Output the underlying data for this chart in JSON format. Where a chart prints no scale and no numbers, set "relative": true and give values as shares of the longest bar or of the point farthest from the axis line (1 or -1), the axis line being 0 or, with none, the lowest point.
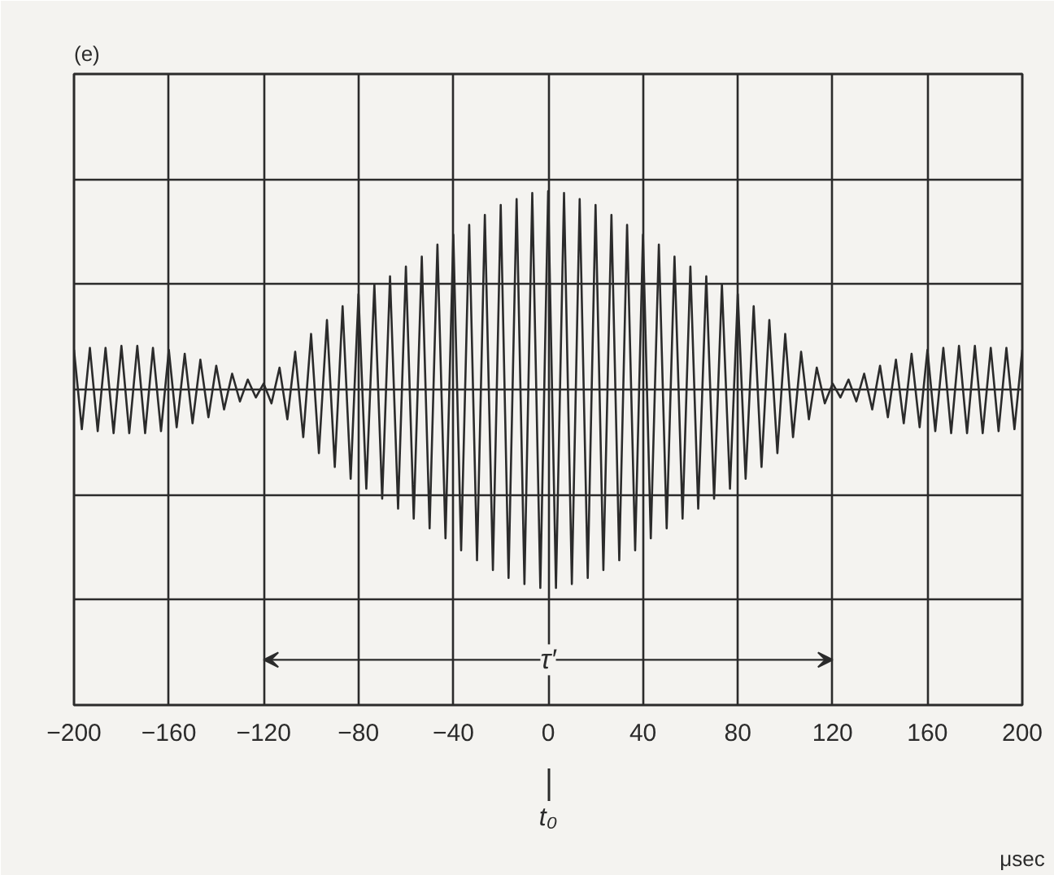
{
  "chart_data": {
    "type": "line",
    "title": "(e)",
    "xlabel": "μsec",
    "relative": true,
    "grid": true,
    "marker": "none",
    "line_style": "solid",
    "x": [
      -200,
      -196.7,
      -193.3,
      -190,
      -186.7,
      -183.3,
      -180,
      -176.7,
      -173.3,
      -170,
      -166.7,
      -163.3,
      -160,
      -156.7,
      -153.3,
      -150,
      -146.7,
      -143.3,
      -140,
      -136.7,
      -133.3,
      -130,
      -126.7,
      -123.3,
      -120,
      -116.7,
      -113.3,
      -110,
      -106.7,
      -103.3,
      -100,
      -96.7,
      -93.3,
      -90,
      -86.7,
      -83.3,
      -80,
      -76.7,
      -73.3,
      -70,
      -66.7,
      -63.3,
      -60,
      -56.7,
      -53.3,
      -50,
      -46.7,
      -43.3,
      -40,
      -36.7,
      -33.3,
      -30,
      -26.7,
      -23.3,
      -20,
      -16.7,
      -13.3,
      -10,
      -6.7,
      -3.3,
      0,
      3.3,
      6.7,
      10,
      13.3,
      16.7,
      20,
      23.3,
      26.7,
      30,
      33.3,
      36.7,
      40,
      43.3,
      46.7,
      50,
      53.3,
      56.7,
      60,
      63.3,
      66.7,
      70,
      73.3,
      76.7,
      80,
      83.3,
      86.7,
      90,
      93.3,
      96.7,
      100,
      103.3,
      106.7,
      110,
      113.3,
      116.7,
      120,
      123.3,
      126.7,
      130,
      133.3,
      136.7,
      140,
      143.3,
      146.7,
      150,
      153.3,
      156.7,
      160,
      163.3,
      166.7,
      170,
      173.3,
      176.7,
      180,
      183.3,
      186.7,
      190,
      193.3,
      196.7,
      200
    ],
    "series": [
      {
        "color": "#2b2b2b",
        "values": [
          0.2,
          -0.2,
          0.21,
          -0.21,
          0.21,
          -0.22,
          0.22,
          -0.22,
          0.22,
          -0.22,
          0.21,
          -0.21,
          0.2,
          -0.19,
          0.18,
          -0.17,
          0.15,
          -0.14,
          0.12,
          -0.1,
          0.08,
          -0.06,
          0.05,
          -0.04,
          0.03,
          -0.07,
          0.11,
          -0.15,
          0.19,
          -0.24,
          0.28,
          -0.32,
          0.35,
          -0.39,
          0.42,
          -0.45,
          0.48,
          -0.5,
          0.53,
          -0.55,
          0.57,
          -0.6,
          0.62,
          -0.65,
          0.67,
          -0.7,
          0.73,
          -0.75,
          0.78,
          -0.81,
          0.83,
          -0.86,
          0.88,
          -0.91,
          0.93,
          -0.95,
          0.96,
          -0.98,
          0.99,
          -1.0,
          1.0,
          -1.0,
          0.99,
          -0.98,
          0.96,
          -0.95,
          0.93,
          -0.91,
          0.88,
          -0.86,
          0.83,
          -0.81,
          0.78,
          -0.75,
          0.73,
          -0.7,
          0.67,
          -0.65,
          0.62,
          -0.6,
          0.57,
          -0.55,
          0.53,
          -0.5,
          0.48,
          -0.45,
          0.42,
          -0.39,
          0.35,
          -0.32,
          0.28,
          -0.24,
          0.19,
          -0.15,
          0.11,
          -0.07,
          0.03,
          -0.04,
          0.05,
          -0.06,
          0.08,
          -0.1,
          0.12,
          -0.14,
          0.15,
          -0.17,
          0.18,
          -0.19,
          0.2,
          -0.21,
          0.21,
          -0.22,
          0.22,
          -0.22,
          0.22,
          -0.22,
          0.21,
          -0.21,
          0.21,
          -0.2,
          0.2
        ]
      }
    ],
    "xlim": [
      -200,
      200
    ],
    "xticks": [
      -200,
      -160,
      -120,
      -80,
      -40,
      0,
      40,
      80,
      120,
      160,
      200
    ],
    "annotations": [
      "τ′",
      {
        "text": "t₀",
        "x": 0
      }
    ]
  }
}
